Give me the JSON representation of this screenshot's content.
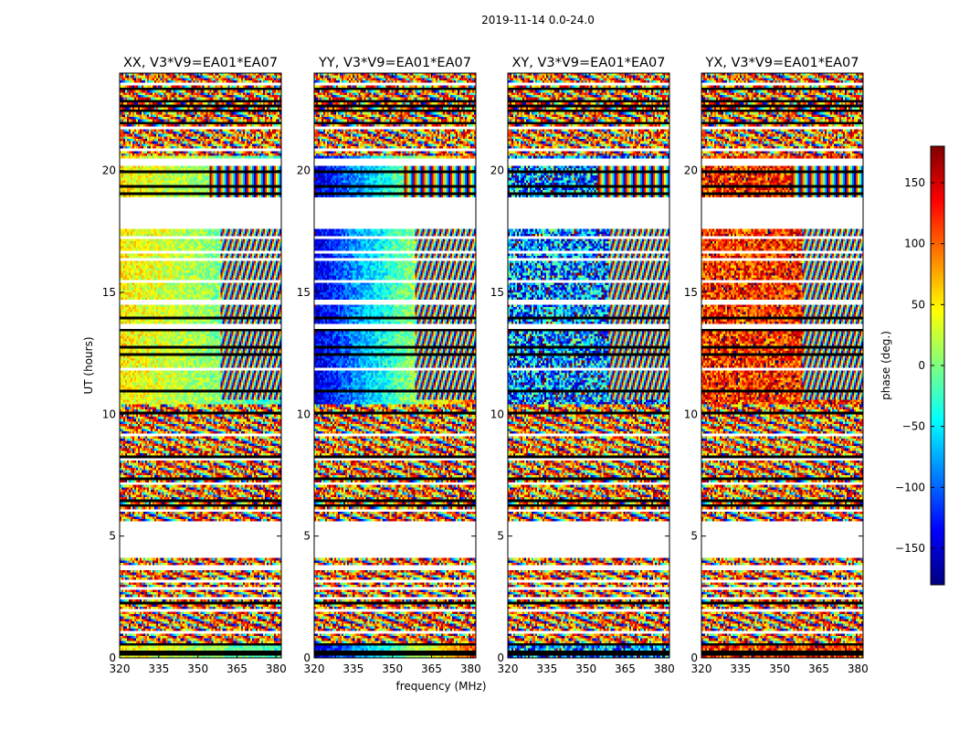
{
  "chart_data": {
    "type": "heatmap",
    "suptitle": "2019-11-14 0.0-24.0",
    "xlabel": "frequency (MHz)",
    "ylabel": "UT (hours)",
    "xlim": [
      320,
      382
    ],
    "ylim": [
      0,
      24
    ],
    "xticks": [
      320,
      335,
      350,
      365,
      380
    ],
    "yticks": [
      0,
      5,
      10,
      15,
      20
    ],
    "panels": [
      {
        "title": "XX, V3*V9=EA01*EA07",
        "pattern": "xx"
      },
      {
        "title": "YY, V3*V9=EA01*EA07",
        "pattern": "yy"
      },
      {
        "title": "XY, V3*V9=EA01*EA07",
        "pattern": "xy"
      },
      {
        "title": "YX, V3*V9=EA01*EA07",
        "pattern": "yx"
      }
    ],
    "data_gaps_hours": [
      [
        4.05,
        5.55
      ],
      [
        17.65,
        18.9
      ],
      [
        20.25,
        20.55
      ]
    ],
    "colorbar": {
      "label": "phase (deg.)",
      "range": [
        -180,
        180
      ],
      "ticks": [
        -150,
        -100,
        -50,
        0,
        50,
        100,
        150
      ],
      "tick_labels": [
        "−150",
        "−100",
        "−50",
        "0",
        "50",
        "100",
        "150"
      ],
      "colormap": "jet",
      "colormap_stops": [
        "#00007f",
        "#0000ff",
        "#007fff",
        "#00ffff",
        "#7fff7f",
        "#ffff00",
        "#ff7f00",
        "#ff0000",
        "#7f0000"
      ]
    }
  }
}
